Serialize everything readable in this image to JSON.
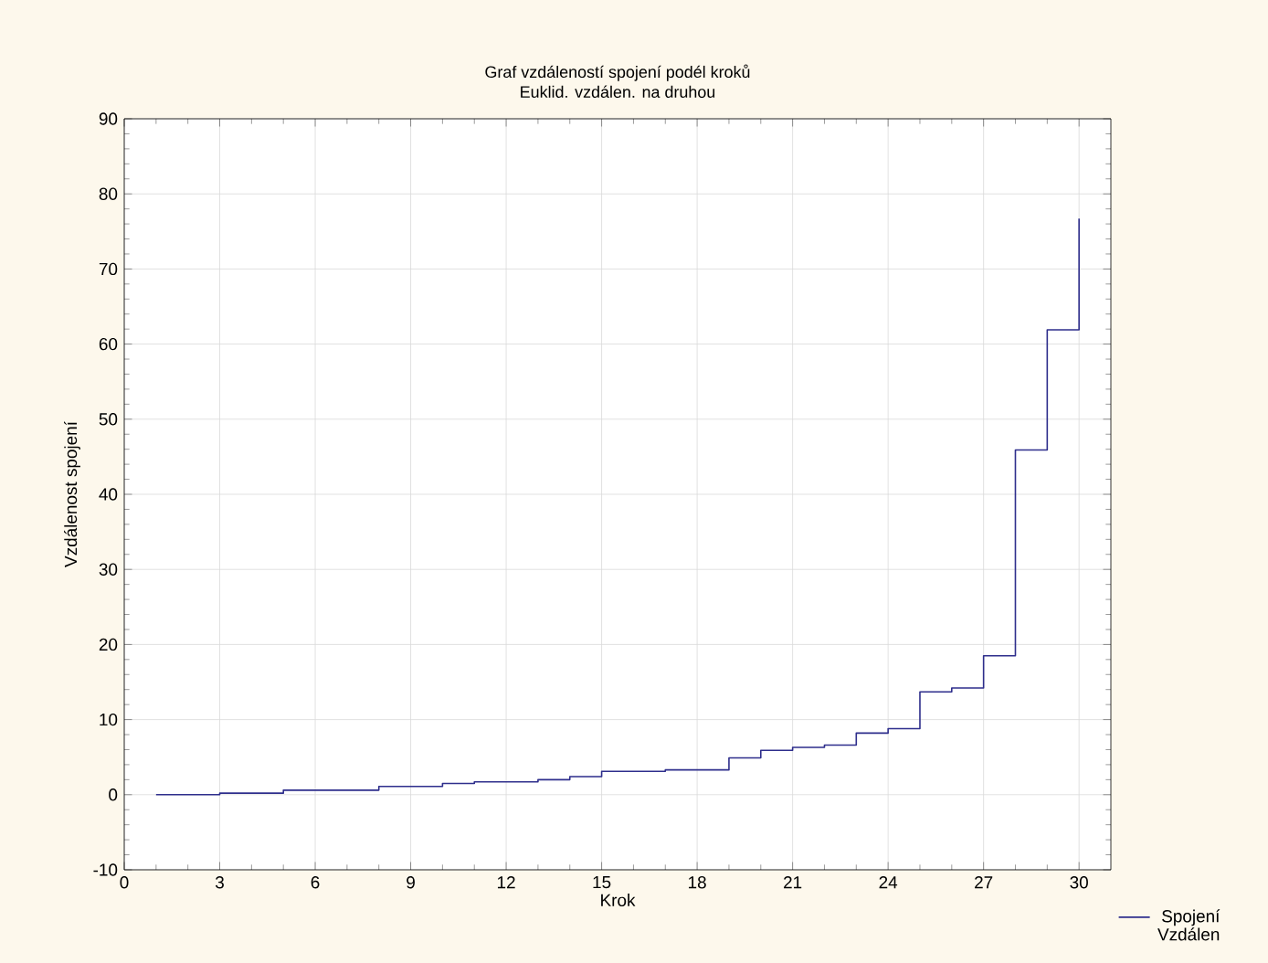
{
  "chart_data": {
    "type": "step",
    "title": "Graf vzdáleností spojení podél kroků",
    "subtitle": "Euklid. vzdálen. na druhou",
    "xlabel": "Krok",
    "ylabel": "Vzdálenost spojení",
    "x": [
      1,
      2,
      3,
      4,
      5,
      6,
      7,
      8,
      9,
      10,
      11,
      12,
      13,
      14,
      15,
      16,
      17,
      18,
      19,
      20,
      21,
      22,
      23,
      24,
      25,
      26,
      27,
      28,
      29,
      30
    ],
    "series": [
      {
        "name": "Spojení Vzdálen",
        "color": "#2e2e8c",
        "values": [
          0,
          0,
          0.2,
          0.2,
          0.6,
          0.6,
          0.6,
          1.1,
          1.1,
          1.5,
          1.7,
          1.7,
          2.0,
          2.4,
          3.1,
          3.1,
          3.3,
          3.3,
          4.9,
          5.9,
          6.3,
          6.6,
          8.2,
          8.8,
          13.7,
          14.2,
          18.5,
          45.9,
          61.9,
          76.7
        ]
      }
    ],
    "xlim": [
      0,
      31
    ],
    "ylim": [
      -10,
      90
    ],
    "xticks": [
      0,
      3,
      6,
      9,
      12,
      15,
      18,
      21,
      24,
      27,
      30
    ],
    "yticks": [
      -10,
      0,
      10,
      20,
      30,
      40,
      50,
      60,
      70,
      80,
      90
    ],
    "grid": true,
    "legend": "bottom right",
    "marker": "none",
    "line_style": "solid"
  }
}
